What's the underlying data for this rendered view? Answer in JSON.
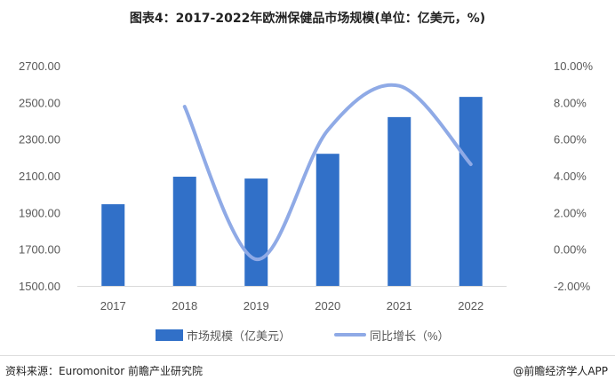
{
  "chart_data": {
    "type": "bar",
    "title": "图表4：2017-2022年欧洲保健品市场规模(单位：亿美元，%)",
    "categories": [
      "2017",
      "2018",
      "2019",
      "2020",
      "2021",
      "2022"
    ],
    "series": [
      {
        "name": "市场规模（亿美元）",
        "type": "bar",
        "axis": "left",
        "color": "#3170C8",
        "values": [
          1945,
          2095,
          2085,
          2220,
          2420,
          2530
        ]
      },
      {
        "name": "同比增长（%）",
        "type": "line",
        "smooth": true,
        "axis": "right",
        "color": "#8FAAE6",
        "values": [
          null,
          7.77,
          -0.55,
          6.48,
          8.9,
          4.63
        ]
      }
    ],
    "yleft": {
      "range": [
        1500,
        2700
      ],
      "ticks": [
        "1500.00",
        "1700.00",
        "1900.00",
        "2100.00",
        "2300.00",
        "2500.00",
        "2700.00"
      ]
    },
    "yright": {
      "range": [
        -2,
        10
      ],
      "ticks": [
        "-2.00%",
        "0.00%",
        "2.00%",
        "4.00%",
        "6.00%",
        "8.00%",
        "10.00%"
      ]
    },
    "grid": false,
    "legend": "bottom"
  },
  "footer": {
    "source": "资料来源：Euromonitor 前瞻产业研究院",
    "credit": "@前瞻经济学人APP"
  }
}
